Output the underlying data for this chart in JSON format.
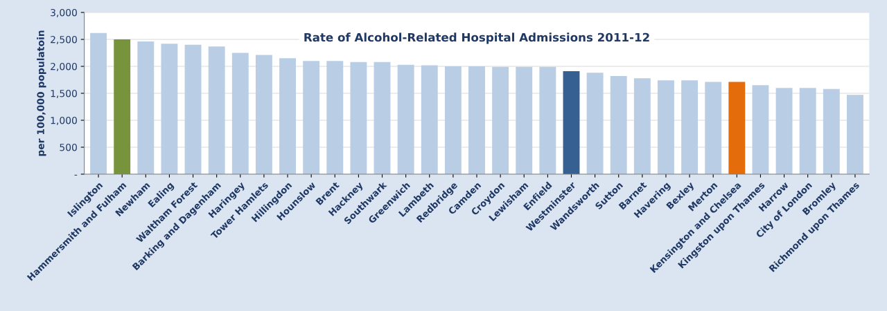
{
  "chart_data": {
    "type": "bar",
    "title": "Rate of Alcohol-Related Hospital Admissions 2011-12",
    "ylabel": "per 100,000 populatoin",
    "categories": [
      "Islington",
      "Hammersmith and Fulham",
      "Newham",
      "Ealing",
      "Waltham Forest",
      "Barking and Dagenham",
      "Haringey",
      "Tower Hamlets",
      "Hillingdon",
      "Hounslow",
      "Brent",
      "Hackney",
      "Southwark",
      "Greenwich",
      "Lambeth",
      "Redbridge",
      "Camden",
      "Croydon",
      "Lewisham",
      "Enfield",
      "Westminster",
      "Wandsworth",
      "Sutton",
      "Barnet",
      "Havering",
      "Bexley",
      "Merton",
      "Kensington and Chelsea",
      "Kingston upon Thames",
      "Harrow",
      "City of London",
      "Bromley",
      "Richmond upon Thames"
    ],
    "values": [
      2620,
      2500,
      2460,
      2420,
      2400,
      2370,
      2250,
      2210,
      2150,
      2100,
      2100,
      2080,
      2080,
      2030,
      2020,
      2000,
      2000,
      1990,
      1990,
      1990,
      1910,
      1880,
      1820,
      1780,
      1740,
      1740,
      1710,
      1710,
      1650,
      1600,
      1600,
      1580,
      1470
    ],
    "colors": [
      "#b9cde5",
      "#77933c",
      "#b9cde5",
      "#b9cde5",
      "#b9cde5",
      "#b9cde5",
      "#b9cde5",
      "#b9cde5",
      "#b9cde5",
      "#b9cde5",
      "#b9cde5",
      "#b9cde5",
      "#b9cde5",
      "#b9cde5",
      "#b9cde5",
      "#b9cde5",
      "#b9cde5",
      "#b9cde5",
      "#b9cde5",
      "#b9cde5",
      "#376092",
      "#b9cde5",
      "#b9cde5",
      "#b9cde5",
      "#b9cde5",
      "#b9cde5",
      "#b9cde5",
      "#e46c0a",
      "#b9cde5",
      "#b9cde5",
      "#b9cde5",
      "#b9cde5",
      "#b9cde5"
    ],
    "ylim": [
      0,
      3000
    ],
    "yticks": [
      {
        "value": 0,
        "label": "-"
      },
      {
        "value": 500,
        "label": "500"
      },
      {
        "value": 1000,
        "label": "1,000"
      },
      {
        "value": 1500,
        "label": "1,500"
      },
      {
        "value": 2000,
        "label": "2,000"
      },
      {
        "value": 2500,
        "label": "2,500"
      },
      {
        "value": 3000,
        "label": "3,000"
      }
    ],
    "grid": "y"
  }
}
